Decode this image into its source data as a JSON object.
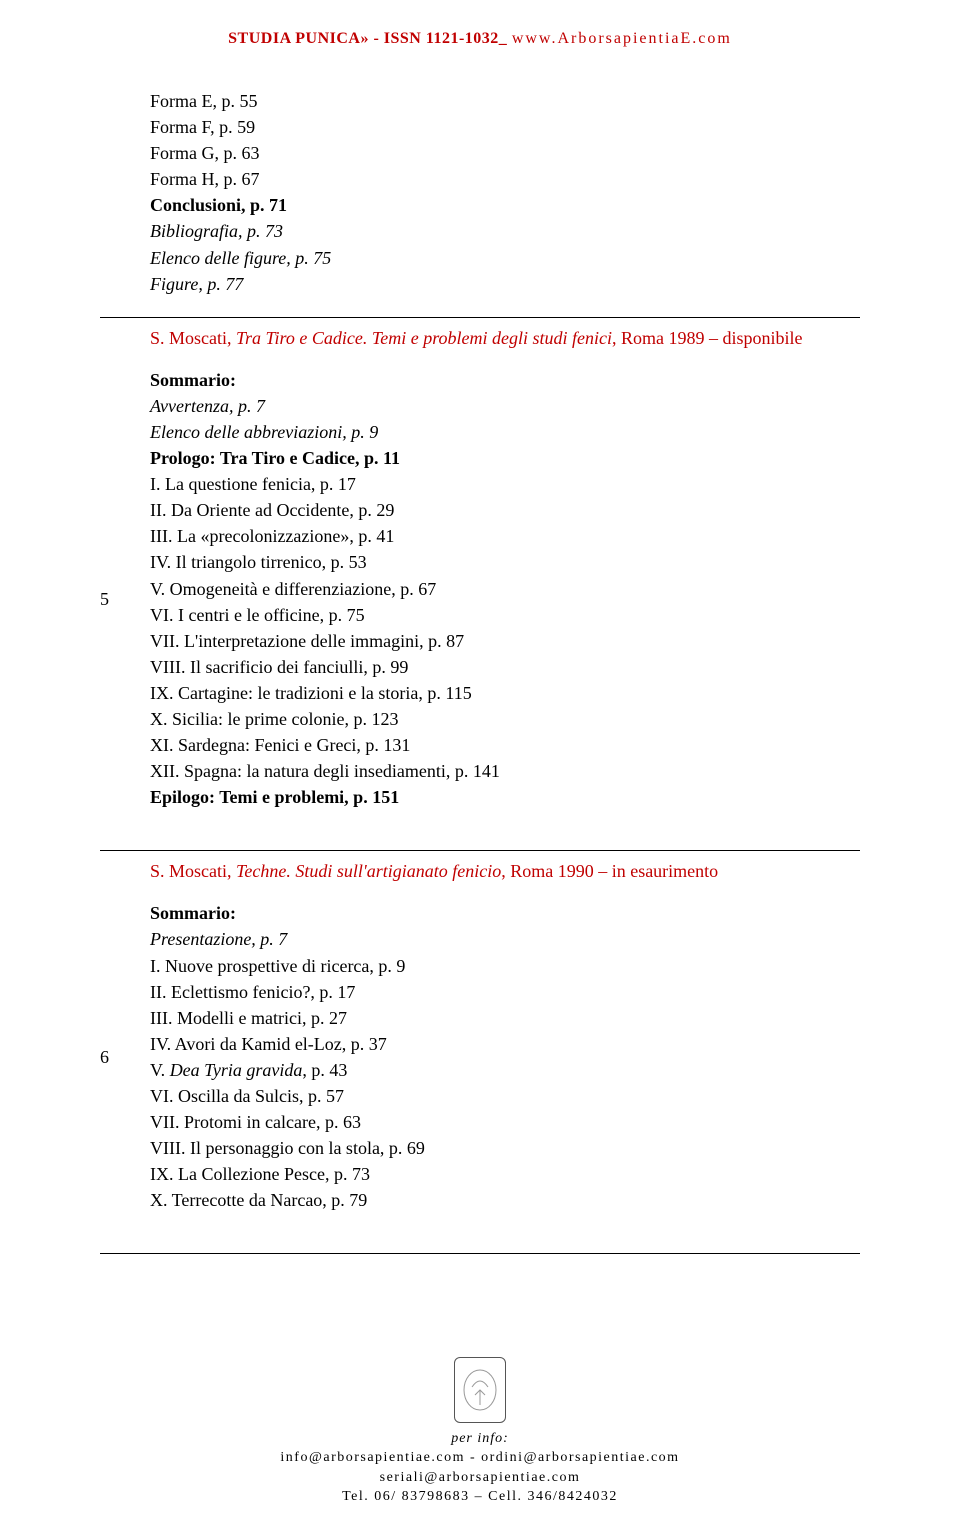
{
  "header": {
    "series": "STUDIA PUNICA» - ISSN 1121-1032_",
    "url": "www.ArborsapientiaE.com"
  },
  "block1": {
    "lines": [
      {
        "text": "Forma E, p. 55"
      },
      {
        "text": "Forma F, p. 59"
      },
      {
        "text": "Forma G, p. 63"
      },
      {
        "text": "Forma H, p. 67"
      },
      {
        "text": "Conclusioni, p. 71",
        "bold": true
      },
      {
        "text": "Bibliografia, p. 73",
        "italic": true
      },
      {
        "text": "Elenco delle figure, p. 75",
        "italic": true
      },
      {
        "text": "Figure, p. 77",
        "italic": true
      }
    ]
  },
  "entry5": {
    "num": "5",
    "title_pre": "S. Moscati, ",
    "title_mid": "Tra Tiro e Cadice. Temi e problemi degli studi fenici",
    "title_post": ", Roma 1989 – disponibile",
    "sommario": "Sommario:",
    "lines": [
      {
        "text": "Avvertenza, p. 7",
        "italic": true
      },
      {
        "text": "Elenco delle abbreviazioni, p. 9",
        "italic": true
      },
      {
        "text": "Prologo: Tra Tiro e Cadice, p. 11",
        "bold": true
      },
      {
        "text": "I. La questione fenicia, p. 17"
      },
      {
        "text": "II. Da Oriente ad Occidente, p. 29"
      },
      {
        "text": "III. La «precolonizzazione», p. 41"
      },
      {
        "text": "IV. Il triangolo tirrenico, p. 53"
      },
      {
        "text": "V. Omogeneità e differenziazione, p. 67"
      },
      {
        "text": "VI. I centri e le officine, p. 75"
      },
      {
        "text": "VII. L'interpretazione delle immagini, p. 87"
      },
      {
        "text": "VIII. Il sacrificio dei fanciulli, p. 99"
      },
      {
        "text": "IX. Cartagine: le tradizioni e la storia, p. 115"
      },
      {
        "text": "X. Sicilia: le prime colonie, p. 123"
      },
      {
        "text": "XI. Sardegna: Fenici e Greci, p. 131"
      },
      {
        "text": "XII. Spagna: la natura degli insediamenti, p. 141"
      },
      {
        "text": "Epilogo: Temi e problemi, p. 151",
        "bold": true
      }
    ]
  },
  "entry6": {
    "num": "6",
    "title_pre": "S. Moscati, ",
    "title_mid": "Techne. Studi sull'artigianato fenicio",
    "title_post": ", Roma 1990 – in esaurimento",
    "sommario": "Sommario:",
    "lines": [
      {
        "text": "Presentazione, p. 7",
        "italic": true
      },
      {
        "text": "I. Nuove prospettive di ricerca, p. 9"
      },
      {
        "text": "II. Eclettismo fenicio?, p. 17"
      },
      {
        "text": "III. Modelli e matrici, p. 27"
      },
      {
        "text": "IV. Avori da Kamid el-Loz, p. 37"
      },
      {
        "pre": "V. ",
        "mid": "Dea Tyria gravida",
        "post": ", p. 43",
        "mixed": true
      },
      {
        "text": "VI. Oscilla da Sulcis, p. 57"
      },
      {
        "text": "VII. Protomi in calcare, p. 63"
      },
      {
        "text": "VIII. Il personaggio con la stola, p. 69"
      },
      {
        "text": "IX. La Collezione Pesce, p. 73"
      },
      {
        "text": "X. Terrecotte da Narcao, p. 79"
      }
    ]
  },
  "footer": {
    "perinfo": "per info:",
    "line1": "info@arborsapientiae.com - ordini@arborsapientiae.com",
    "line2": "seriali@arborsapientiae.com",
    "line3": "Tel. 06/ 83798683 – Cell. 346/8424032"
  }
}
